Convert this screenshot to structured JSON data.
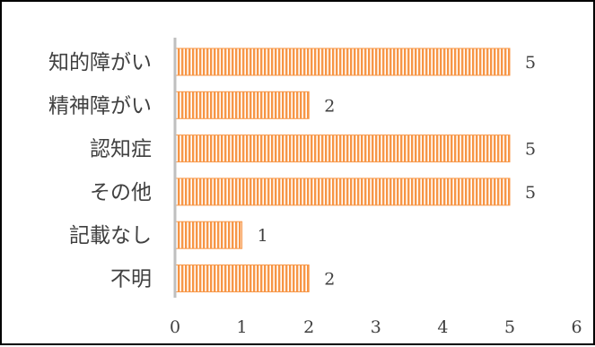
{
  "chart_data": {
    "type": "bar",
    "orientation": "horizontal",
    "categories": [
      "知的障がい",
      "精神障がい",
      "認知症",
      "その他",
      "記載なし",
      "不明"
    ],
    "values": [
      5,
      2,
      5,
      5,
      1,
      2
    ],
    "title": "",
    "xlabel": "",
    "ylabel": "",
    "xlim": [
      0,
      6
    ],
    "x_ticks": [
      "0",
      "1",
      "2",
      "3",
      "4",
      "5",
      "6"
    ],
    "data_labels": [
      "5",
      "2",
      "5",
      "5",
      "1",
      "2"
    ],
    "grid": false,
    "legend": "none",
    "bar_color": "#f79646",
    "bar_pattern": "vertical-stripes",
    "bar_stripe_color": "#ffffff",
    "axis_color": "#bfbfbf",
    "text_color": "#404040"
  }
}
